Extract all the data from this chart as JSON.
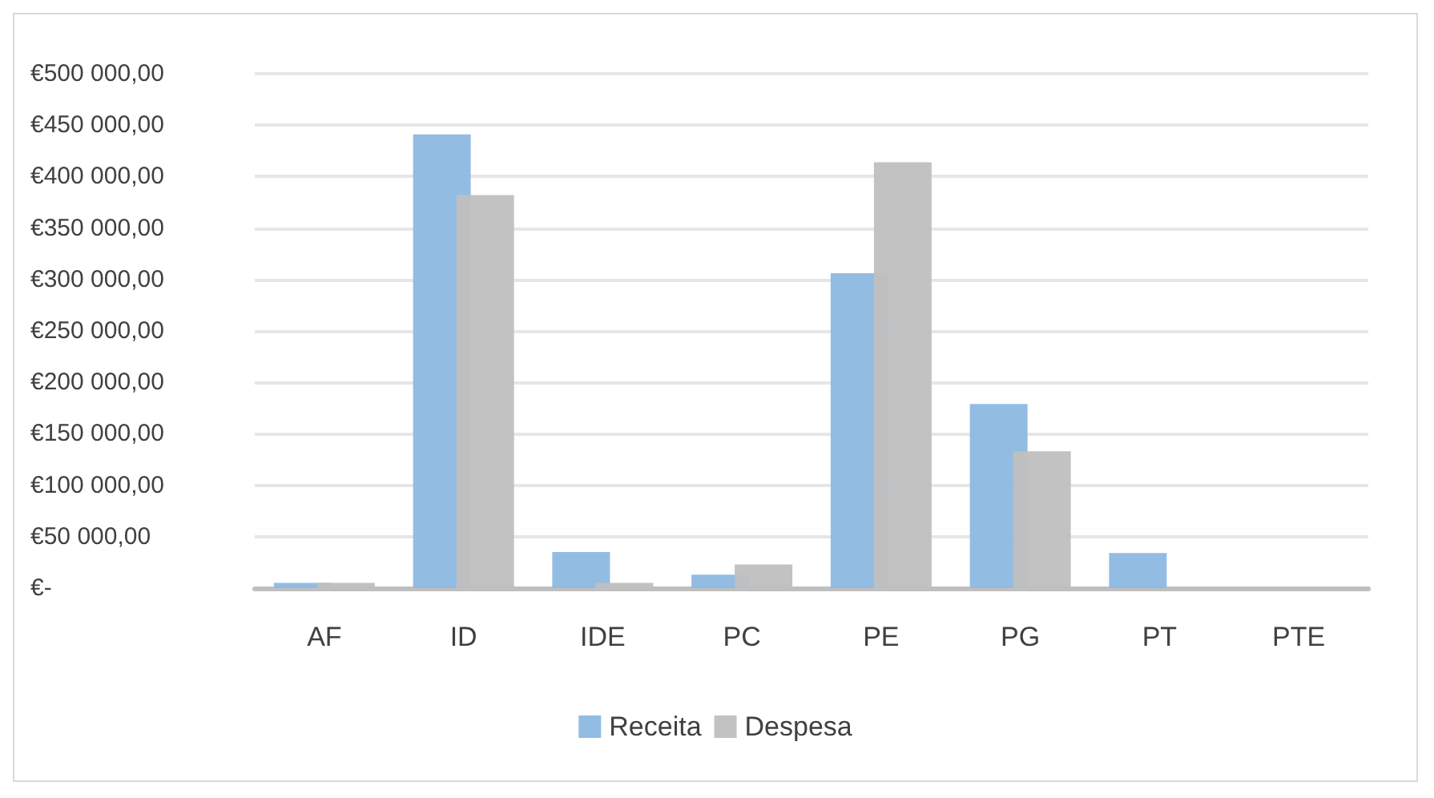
{
  "chart_data": {
    "type": "bar",
    "categories": [
      "AF",
      "ID",
      "IDE",
      "PC",
      "PE",
      "PG",
      "PT",
      "PTE"
    ],
    "series": [
      {
        "name": "Receita",
        "color": "#8db8e2",
        "values": [
          5000,
          441000,
          35000,
          13000,
          306000,
          179000,
          34000,
          0
        ]
      },
      {
        "name": "Despesa",
        "color": "#bfbfbf",
        "values": [
          5000,
          382000,
          5000,
          23000,
          414000,
          133000,
          null,
          0
        ]
      }
    ],
    "ylim": [
      0,
      500000
    ],
    "yticks": [
      {
        "value": 0,
        "label": "€-"
      },
      {
        "value": 50000,
        "label": "€50 000,00"
      },
      {
        "value": 100000,
        "label": "€100 000,00"
      },
      {
        "value": 150000,
        "label": "€150 000,00"
      },
      {
        "value": 200000,
        "label": "€200 000,00"
      },
      {
        "value": 250000,
        "label": "€250 000,00"
      },
      {
        "value": 300000,
        "label": "€300 000,00"
      },
      {
        "value": 350000,
        "label": "€350 000,00"
      },
      {
        "value": 400000,
        "label": "€400 000,00"
      },
      {
        "value": 450000,
        "label": "€450 000,00"
      },
      {
        "value": 500000,
        "label": "€500 000,00"
      }
    ],
    "grid": true,
    "legend": "bottom"
  }
}
